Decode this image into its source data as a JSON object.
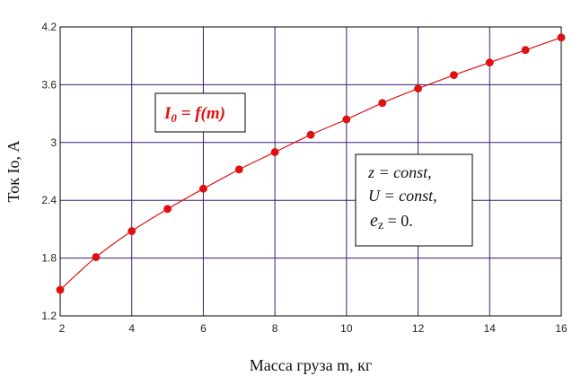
{
  "chart_data": {
    "type": "line",
    "xlabel": "Масса груза m, кг",
    "ylabel": "Ток Iо, А",
    "xlim": [
      2,
      16
    ],
    "ylim": [
      1.2,
      4.2
    ],
    "xticks": [
      "2",
      "4",
      "6",
      "8",
      "10",
      "12",
      "14",
      "16"
    ],
    "yticks": [
      "1.2",
      "1.8",
      "2.4",
      "3",
      "3.6",
      "4.2"
    ],
    "grid": true,
    "colors": {
      "grid": "#3a1a78",
      "series": "#e01010",
      "frame": "#000000"
    },
    "series": [
      {
        "x": [
          2,
          3,
          4,
          5,
          6,
          7,
          8,
          9,
          10,
          11,
          12,
          13,
          14,
          15,
          16
        ],
        "y": [
          1.47,
          1.81,
          2.08,
          2.31,
          2.52,
          2.72,
          2.9,
          3.08,
          3.24,
          3.41,
          3.56,
          3.7,
          3.83,
          3.96,
          4.09
        ]
      }
    ],
    "annotations": {
      "formula": {
        "I": "I",
        "sub0": "0",
        "rest": " = f(m)"
      },
      "conditions": {
        "line1": "z = const,",
        "line2": "U = const,",
        "line3_e": "e",
        "line3_sub": "z",
        "line3_rest": " = 0."
      }
    }
  }
}
